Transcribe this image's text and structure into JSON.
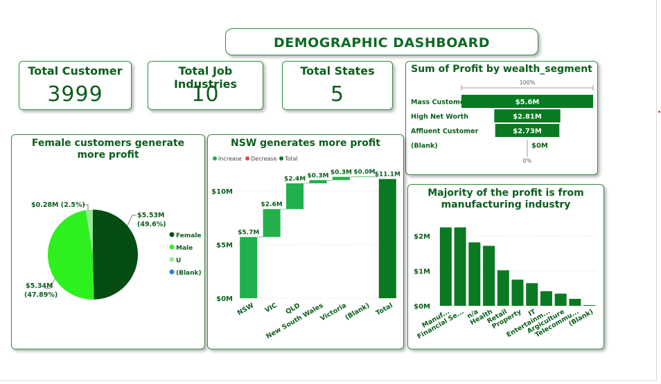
{
  "header": {
    "title": "DEMOGRAPHIC DASHBOARD"
  },
  "kpis": [
    {
      "label": "Total Customer",
      "value": "3999"
    },
    {
      "label": "Total Job Industries",
      "value": "10"
    },
    {
      "label": "Total States",
      "value": "5"
    }
  ],
  "colors": {
    "accent": "#0b6b22",
    "bar_dark": "#0a7a22",
    "bar_light": "#1faa3b",
    "increase": "#21b04b",
    "decrease": "#e04655",
    "total": "#0a7a22"
  },
  "chart_data": [
    {
      "id": "wealth",
      "type": "bar",
      "orientation": "horizontal-funnel",
      "title": "Sum of Profit by wealth_segment",
      "categories": [
        "Mass Customer",
        "High Net Worth",
        "Affluent Customer",
        "(Blank)"
      ],
      "values": [
        5.6,
        2.81,
        2.73,
        0
      ],
      "data_labels": [
        "$5.6M",
        "$2.81M",
        "$2.73M",
        "$0M"
      ],
      "top_percent_label": "100%",
      "bottom_percent_label": "0%"
    },
    {
      "id": "gender",
      "type": "pie",
      "title": "Female customers generate more profit",
      "categories": [
        "Female",
        "Male",
        "U",
        "(Blank)"
      ],
      "values": [
        5.53,
        5.34,
        0.28,
        0
      ],
      "data_labels": [
        "$5.53M\n(49.6%)",
        "$5.34M\n(47.89%)",
        "$0.28M (2.5%)",
        ""
      ],
      "colors": [
        "#054d12",
        "#2ef01e",
        "#9be89a",
        "#2a7fe0"
      ],
      "legend": "right"
    },
    {
      "id": "states",
      "type": "bar",
      "subtype": "waterfall",
      "title": "NSW generates more profit",
      "legend_items": [
        "Increase",
        "Decrease",
        "Total"
      ],
      "categories": [
        "NSW",
        "VIC",
        "QLD",
        "New South Wales",
        "Victoria",
        "(Blank)",
        "Total"
      ],
      "values": [
        5.7,
        2.6,
        2.4,
        0.3,
        0.3,
        0.0,
        11.1
      ],
      "data_labels": [
        "$5.7M",
        "$2.6M",
        "$2.4M",
        "$0.3M",
        "$0.3M",
        "$0.0M",
        "$11.1M"
      ],
      "kinds": [
        "increase",
        "increase",
        "increase",
        "increase",
        "increase",
        "increase",
        "total"
      ],
      "yticks": [
        "$0M",
        "$5M",
        "$10M"
      ],
      "ytick_values": [
        0,
        5,
        10
      ],
      "ylim": [
        0,
        12.5
      ]
    },
    {
      "id": "industry",
      "type": "bar",
      "title": "Majority of the profit is from manufacturing industry",
      "categories": [
        "Manuf...",
        "Financial Se...",
        "n/a",
        "Health",
        "Retail",
        "Property",
        "IT",
        "Entertainm...",
        "Argiculture",
        "Telecommu...",
        "(Blank)"
      ],
      "values": [
        2.25,
        2.25,
        1.82,
        1.72,
        1.02,
        0.75,
        0.65,
        0.42,
        0.35,
        0.2,
        0.02
      ],
      "yticks": [
        "$0M",
        "$1M",
        "$2M"
      ],
      "ytick_values": [
        0,
        1,
        2
      ],
      "ylim": [
        0,
        2.6
      ]
    }
  ]
}
